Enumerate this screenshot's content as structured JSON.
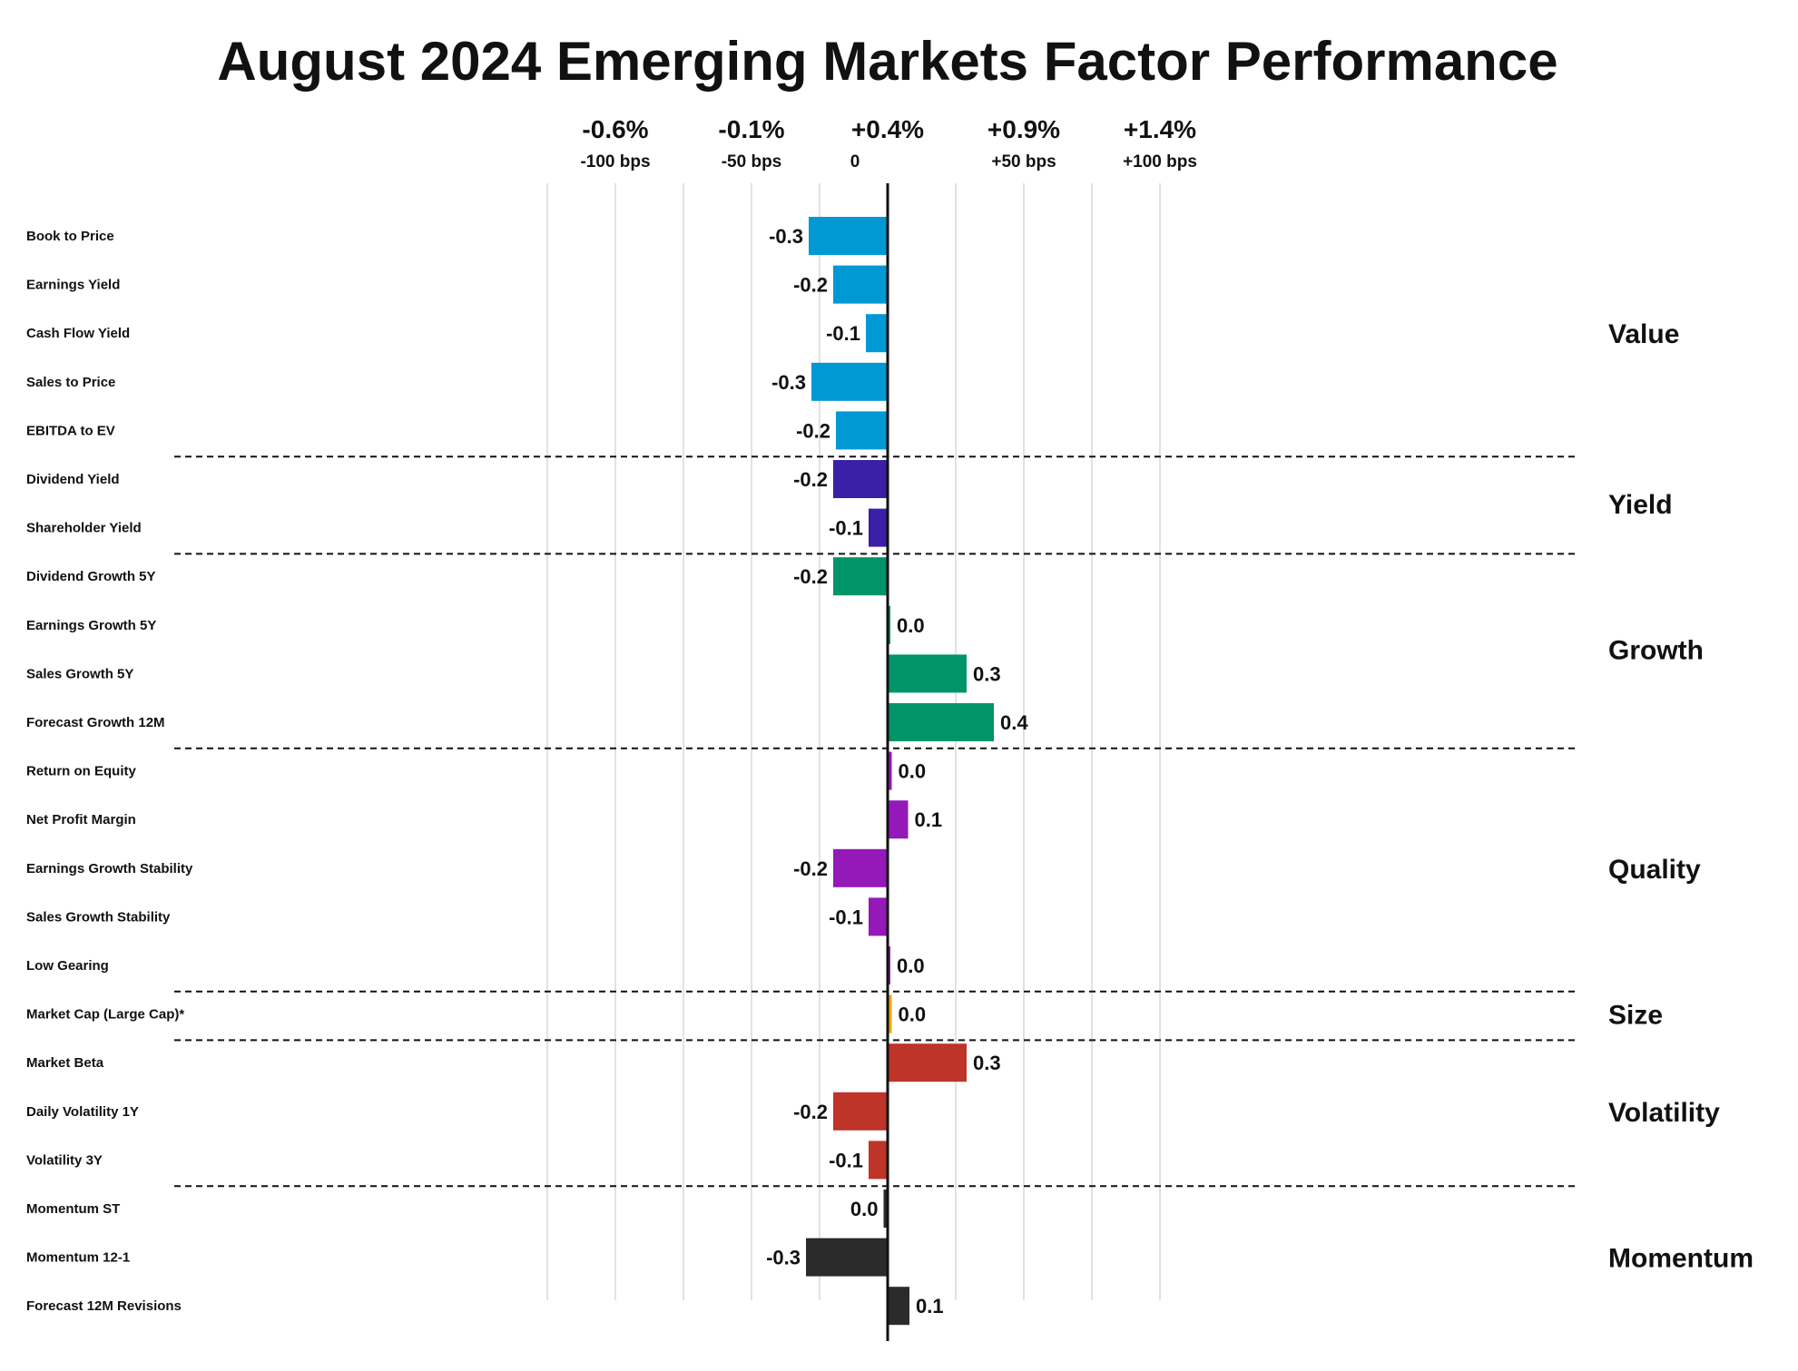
{
  "chart_data": {
    "type": "bar",
    "orientation": "horizontal",
    "title": "August 2024 Emerging Markets Factor Performance",
    "xlim": [
      -125,
      125
    ],
    "axis_top_ticks": [
      {
        "value": -100,
        "label": "-0.6%"
      },
      {
        "value": -50,
        "label": "-0.1%"
      },
      {
        "value": 0,
        "label": "+0.4%"
      },
      {
        "value": 50,
        "label": "+0.9%"
      },
      {
        "value": 100,
        "label": "+1.4%"
      }
    ],
    "axis_bottom_ticks": [
      {
        "value": -100,
        "label": "-100 bps"
      },
      {
        "value": -50,
        "label": "-50 bps"
      },
      {
        "value": 0,
        "label": "0"
      },
      {
        "value": 50,
        "label": "+50 bps"
      },
      {
        "value": 100,
        "label": "+100 bps"
      }
    ],
    "grid_values": [
      -125,
      -100,
      -75,
      -50,
      -25,
      25,
      50,
      75,
      100
    ],
    "grid": true,
    "groups": [
      {
        "name": "Value",
        "color": "#0099D4",
        "items": [
          {
            "label": "Book to Price",
            "value": -0.29,
            "display": "-0.3"
          },
          {
            "label": "Earnings Yield",
            "value": -0.2,
            "display": "-0.2"
          },
          {
            "label": "Cash Flow Yield",
            "value": -0.08,
            "display": "-0.1"
          },
          {
            "label": "Sales to Price",
            "value": -0.28,
            "display": "-0.3"
          },
          {
            "label": "EBITDA to EV",
            "value": -0.19,
            "display": "-0.2"
          }
        ]
      },
      {
        "name": "Yield",
        "color": "#3A20A6",
        "items": [
          {
            "label": "Dividend Yield",
            "value": -0.2,
            "display": "-0.2"
          },
          {
            "label": "Shareholder Yield",
            "value": -0.07,
            "display": "-0.1"
          }
        ]
      },
      {
        "name": "Growth",
        "color": "#009468",
        "items": [
          {
            "label": "Dividend Growth 5Y",
            "value": -0.2,
            "display": "-0.2"
          },
          {
            "label": "Earnings Growth 5Y",
            "value": 0.01,
            "display": "0.0"
          },
          {
            "label": "Sales Growth 5Y",
            "value": 0.29,
            "display": "0.3"
          },
          {
            "label": "Forecast Growth 12M",
            "value": 0.39,
            "display": "0.4"
          }
        ]
      },
      {
        "name": "Quality",
        "color": "#9419B8",
        "items": [
          {
            "label": "Return on Equity",
            "value": 0.015,
            "display": "0.0"
          },
          {
            "label": "Net Profit Margin",
            "value": 0.075,
            "display": "0.1"
          },
          {
            "label": "Earnings Growth Stability",
            "value": -0.2,
            "display": "-0.2"
          },
          {
            "label": "Sales Growth Stability",
            "value": -0.07,
            "display": "-0.1"
          },
          {
            "label": "Low Gearing",
            "value": 0.01,
            "display": "0.0"
          }
        ]
      },
      {
        "name": "Size",
        "color": "#F5A800",
        "items": [
          {
            "label": "Market Cap (Large Cap)*",
            "value": 0.015,
            "display": "0.0"
          }
        ]
      },
      {
        "name": "Volatility",
        "color": "#BE3428",
        "items": [
          {
            "label": "Market Beta",
            "value": 0.29,
            "display": "0.3"
          },
          {
            "label": "Daily Volatility 1Y",
            "value": -0.2,
            "display": "-0.2"
          },
          {
            "label": "Volatility 3Y",
            "value": -0.07,
            "display": "-0.1"
          }
        ]
      },
      {
        "name": "Momentum",
        "color": "#2B2B2B",
        "items": [
          {
            "label": "Momentum ST",
            "value": -0.015,
            "display": "0.0"
          },
          {
            "label": "Momentum 12-1",
            "value": -0.3,
            "display": "-0.3"
          },
          {
            "label": "Forecast 12M Revisions",
            "value": 0.08,
            "display": "0.1"
          }
        ]
      }
    ]
  }
}
